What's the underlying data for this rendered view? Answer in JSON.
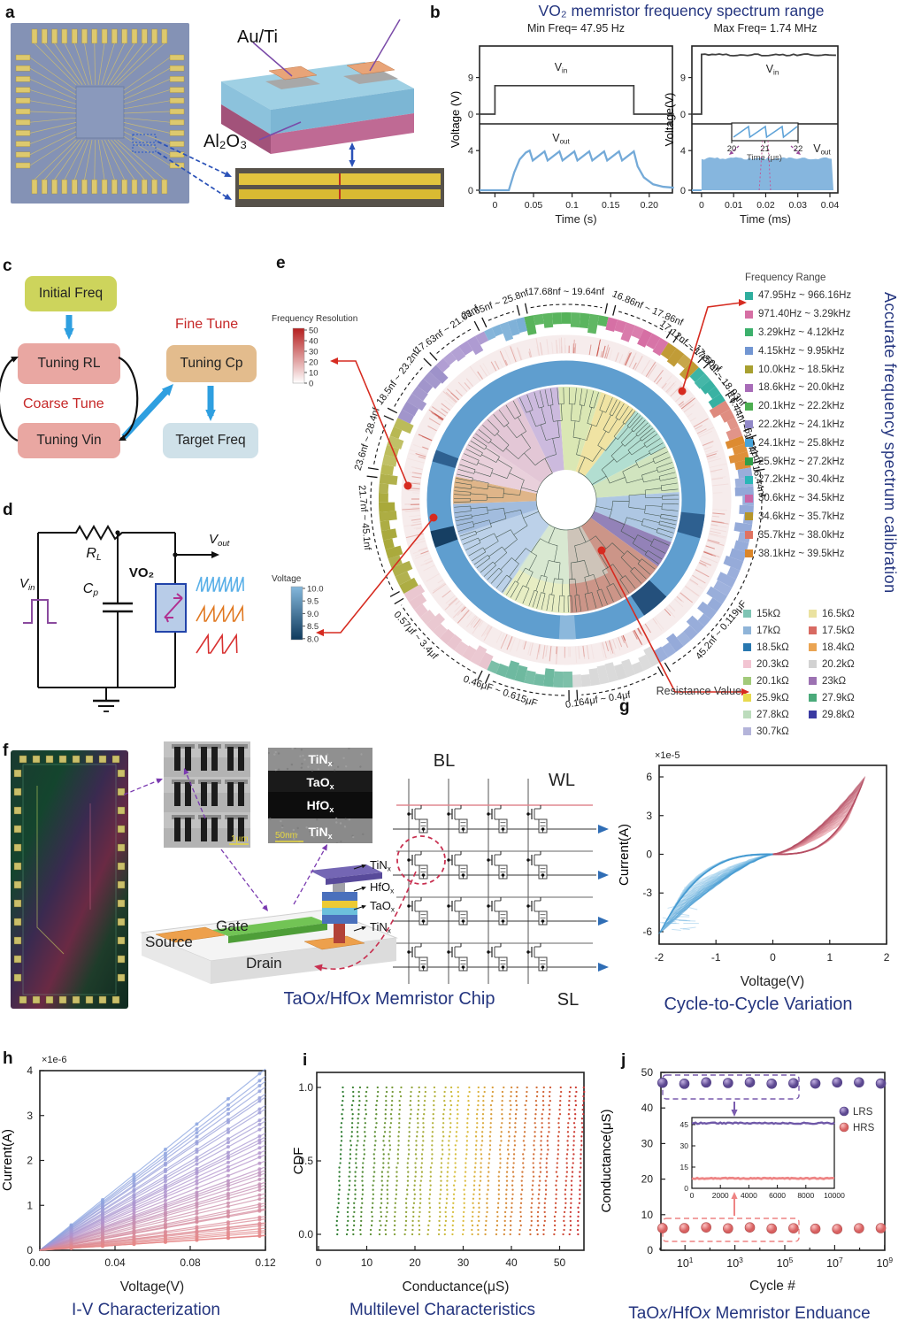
{
  "letters": {
    "a": "a",
    "b": "b",
    "c": "c",
    "d": "d",
    "e": "e",
    "f": "f",
    "g": "g",
    "h": "h",
    "i": "i",
    "j": "j"
  },
  "a": {
    "au_ti": "Au/Ti",
    "al2o3": "Al₂O₃"
  },
  "b": {
    "title": "VO₂ memristor frequency spectrum range",
    "left": {
      "subtitle": "Min Freq= 47.95 Hz",
      "ylabel": "Voltage (V)",
      "xlabel": "Time (s)",
      "xticks": [
        "0",
        "0.05",
        "0.1",
        "0.15",
        "0.20"
      ],
      "ytop": [
        "9",
        "0"
      ],
      "ybot": [
        "4",
        "0"
      ],
      "vin": {
        "m": "V",
        "s": "in"
      },
      "vout": {
        "m": "V",
        "s": "out"
      }
    },
    "right": {
      "subtitle": "Max Freq= 1.74 MHz",
      "ylabel": "Voltage(V)",
      "xlabel": "Time (ms)",
      "xticks": [
        "0",
        "0.01",
        "0.02",
        "0.03",
        "0.04"
      ],
      "ytop": [
        "9",
        "0"
      ],
      "ybot": [
        "4",
        "0"
      ],
      "vin": {
        "m": "V",
        "s": "in"
      },
      "vout": {
        "m": "V",
        "s": "out"
      },
      "inset_xticks": [
        "20",
        "21",
        "22"
      ],
      "inset_xlabel": "Time (μs)"
    }
  },
  "c": {
    "initial": "Initial Freq",
    "rl": "Tuning RL",
    "vin": "Tuning Vin",
    "cp": "Tuning Cp",
    "target": "Target Freq",
    "coarse": "Coarse Tune",
    "fine": "Fine Tune"
  },
  "d": {
    "rl": {
      "m": "R",
      "s": "L"
    },
    "cp": {
      "m": "C",
      "s": "p"
    },
    "vo2": "VO₂",
    "vin": {
      "m": "V",
      "s": "in"
    },
    "vout": {
      "m": "V",
      "s": "out"
    }
  },
  "e": {
    "side_title": "Accurate frequency spectrum calibration",
    "freq_legend_title": "Frequency Range",
    "res_label": "Resistance Value",
    "freq_res": {
      "title": "Frequency Resolution",
      "ticks": [
        "50",
        "40",
        "30",
        "20",
        "10",
        "0"
      ]
    },
    "voltage": {
      "title": "Voltage",
      "ticks": [
        "10.0",
        "9.5",
        "9.0",
        "8.5",
        "8.0"
      ]
    },
    "freq_legend": [
      {
        "color": "#2fae9e",
        "label": "47.95Hz ~ 966.16Hz"
      },
      {
        "color": "#d66fa4",
        "label": "971.40Hz ~ 3.29kHz"
      },
      {
        "color": "#3cb06c",
        "label": "3.29kHz ~ 4.12kHz"
      },
      {
        "color": "#7296d2",
        "label": "4.15kHz ~ 9.95kHz"
      },
      {
        "color": "#a8a030",
        "label": "10.0kHz ~ 18.5kHz"
      },
      {
        "color": "#a86cb8",
        "label": "18.6kHz ~ 20.0kHz"
      },
      {
        "color": "#4cae50",
        "label": "20.1kHz ~ 22.2kHz"
      },
      {
        "color": "#9188c8",
        "label": "22.2kHz ~ 24.1kHz"
      },
      {
        "color": "#46a4da",
        "label": "24.1kHz ~ 25.8kHz"
      },
      {
        "color": "#2f9e48",
        "label": "25.9kHz ~ 27.2kHz"
      },
      {
        "color": "#2ab6b6",
        "label": "27.2kHz ~ 30.4kHz"
      },
      {
        "color": "#c868a8",
        "label": "30.6kHz ~ 34.5kHz"
      },
      {
        "color": "#b5952a",
        "label": "34.6kHz ~ 35.7kHz"
      },
      {
        "color": "#e07260",
        "label": "35.7kHz ~ 38.0kHz"
      },
      {
        "color": "#dc8628",
        "label": "38.1kHz ~ 39.5kHz"
      }
    ],
    "res_col1": [
      {
        "color": "#7fc4b4",
        "label": "15kΩ"
      },
      {
        "color": "#8fb4d8",
        "label": "17kΩ"
      },
      {
        "color": "#2878b0",
        "label": "18.5kΩ"
      },
      {
        "color": "#f2c4d2",
        "label": "20.3kΩ"
      },
      {
        "color": "#a2ca7a",
        "label": "20.1kΩ"
      },
      {
        "color": "#e8da4e",
        "label": "25.9kΩ"
      },
      {
        "color": "#bcdcbc",
        "label": "27.8kΩ"
      },
      {
        "color": "#b4b4da",
        "label": "30.7kΩ"
      }
    ],
    "res_col2": [
      {
        "color": "#eae2a0",
        "label": "16.5kΩ"
      },
      {
        "color": "#d86a62",
        "label": "17.5kΩ"
      },
      {
        "color": "#eaa452",
        "label": "18.4kΩ"
      },
      {
        "color": "#d2d2d2",
        "label": "20.2kΩ"
      },
      {
        "color": "#9c72b2",
        "label": "23kΩ"
      },
      {
        "color": "#4aaa7a",
        "label": "27.9kΩ"
      },
      {
        "color": "#3a3aa2",
        "label": "29.8kΩ"
      }
    ],
    "ring_segments": [
      {
        "label": "17.68nf ~ 19.64nf",
        "color": "#4cae50",
        "a0": -13,
        "a1": 13,
        "la": 0,
        "lr": 232
      },
      {
        "label": "16.86nf ~ 17.86nf",
        "color": "#d66fa4",
        "a0": 13,
        "a1": 33,
        "la": 23,
        "lr": 232
      },
      {
        "label": "17.12nf ~ 17.50nf",
        "color": "#c09a32",
        "a0": 33,
        "a1": 45,
        "la": 39,
        "lr": 220
      },
      {
        "label": "17.87nf ~ 18.93nf",
        "color": "#2fae9e",
        "a0": 45,
        "a1": 58,
        "la": 51,
        "lr": 220
      },
      {
        "label": "16.44nf ~ 17.11nf",
        "color": "#de8a7e",
        "a0": 58,
        "a1": 70,
        "la": 68,
        "lr": 214
      },
      {
        "label": "16.13nf ~ 16.44nf",
        "color": "#dc8628",
        "a0": 70,
        "a1": 80,
        "la": 78,
        "lr": 214
      },
      {
        "label": "45.2nf ~ 0.119μF",
        "color": "#92a8d8",
        "a0": 80,
        "a1": 150,
        "la": 130,
        "lr": 232
      },
      {
        "label": "0.164μf ~ 0.4μf",
        "color": "#d8d8d8",
        "a0": 150,
        "a1": 178,
        "la": 171,
        "lr": 232
      },
      {
        "label": "0.46μF ~ 0.615μF",
        "color": "#6cb89e",
        "a0": 178,
        "a1": 205,
        "la": 199,
        "lr": 232
      },
      {
        "label": "0.57μf ~ 3.4μf",
        "color": "#e8c2cc",
        "a0": 205,
        "a1": 240,
        "la": 228,
        "lr": 232
      },
      {
        "label": "21.7nf ~ 45.1nf",
        "color": "#a8a838",
        "a0": 240,
        "a1": 278,
        "la": 265,
        "lr": 232
      },
      {
        "label": "23.6nf ~ 28.4nf",
        "color": "#b8b852",
        "a0": 278,
        "a1": 296,
        "la": 287,
        "lr": 232
      },
      {
        "label": "18.5nf ~ 23.2nf",
        "color": "#9b8ec8",
        "a0": 296,
        "a1": 316,
        "la": 306,
        "lr": 232
      },
      {
        "label": "17.63nf ~ 21.08nf",
        "color": "#ab97d0",
        "a0": 316,
        "a1": 334,
        "la": 325,
        "lr": 232
      },
      {
        "label": "21.65nf ~ 25.8nf",
        "color": "#79aed6",
        "a0": 334,
        "a1": 347,
        "la": 340,
        "lr": 232
      }
    ],
    "inner_wedges": [
      {
        "a0": -26,
        "a1": -4,
        "c": "#c9b6dc"
      },
      {
        "a0": -4,
        "a1": 18,
        "c": "#d8e6b0"
      },
      {
        "a0": 18,
        "a1": 38,
        "c": "#efe29e"
      },
      {
        "a0": 38,
        "a1": 62,
        "c": "#aedccf"
      },
      {
        "a0": 62,
        "a1": 86,
        "c": "#cfe3bc"
      },
      {
        "a0": 86,
        "a1": 112,
        "c": "#aac4e2"
      },
      {
        "a0": 112,
        "a1": 126,
        "c": "#8d7bb4"
      },
      {
        "a0": 126,
        "a1": 178,
        "c": "#c98f82"
      },
      {
        "a0": 178,
        "a1": 214,
        "c": "#e6ecc0"
      },
      {
        "a0": 214,
        "a1": 252,
        "c": "#b8cfe8"
      },
      {
        "a0": 252,
        "a1": 268,
        "c": "#9db8dc"
      },
      {
        "a0": 268,
        "a1": 282,
        "c": "#ddb183"
      },
      {
        "a0": 282,
        "a1": 304,
        "c": "#e8cdd9"
      },
      {
        "a0": 304,
        "a1": 334,
        "c": "#e2c4d4"
      }
    ]
  },
  "f": {
    "sem_scale": "1μm",
    "tem_scale": "50nm",
    "tem_layers": [
      {
        "m": "TiN",
        "s": "x"
      },
      {
        "m": "TaO",
        "s": "x"
      },
      {
        "m": "HfO",
        "s": "x"
      },
      {
        "m": "TiN",
        "s": "x"
      }
    ],
    "stack_labels": [
      {
        "m": "TiN",
        "s": "x"
      },
      {
        "m": "HfO",
        "s": "x"
      },
      {
        "m": "TaO",
        "s": "x"
      },
      {
        "m": "TiN",
        "s": "x"
      }
    ],
    "source": "Source",
    "gate": "Gate",
    "drain": "Drain",
    "bl": "BL",
    "wl": "WL",
    "sl": "SL",
    "caption": [
      {
        "t": "TaO"
      },
      {
        "t": "x",
        "i": 1
      },
      {
        "t": "/HfO"
      },
      {
        "t": "x",
        "i": 1
      },
      {
        "t": " Memristor Chip"
      }
    ]
  },
  "g": {
    "exp": "×1e-5",
    "ylabel": "Current(A)",
    "xlabel": "Voltage(V)",
    "xticks": [
      "-2",
      "-1",
      "0",
      "1",
      "2"
    ],
    "yticks": [
      "-6",
      "-3",
      "0",
      "3",
      "6"
    ],
    "caption": "Cycle-to-Cycle Variation"
  },
  "h": {
    "exp": "×1e-6",
    "ylabel": "Current(A)",
    "xlabel": "Voltage(V)",
    "xticks": [
      "0.00",
      "0.04",
      "0.08",
      "0.12"
    ],
    "yticks": [
      "0",
      "1",
      "2",
      "3",
      "4"
    ],
    "caption": "I-V Characterization"
  },
  "i": {
    "ylabel": "CDF",
    "xlabel": "Conductance(μS)",
    "xticks": [
      "0",
      "10",
      "20",
      "30",
      "40",
      "50"
    ],
    "yticks": [
      "1.0",
      "0.5",
      "0.0"
    ],
    "caption": "Multilevel Characteristics"
  },
  "j": {
    "ylabel": "Conductance(μS)",
    "xlabel": "Cycle #",
    "yticks": [
      "0",
      "10",
      "20",
      "30",
      "40",
      "50"
    ],
    "xtick_exps": [
      "1",
      "3",
      "5",
      "7",
      "9"
    ],
    "legend": [
      "LRS",
      "HRS"
    ],
    "inset": {
      "yticks": [
        "45",
        "30",
        "15",
        "0"
      ],
      "xticks": [
        "0",
        "2000",
        "4000",
        "6000",
        "8000",
        "10000"
      ]
    },
    "caption": [
      {
        "t": "TaO"
      },
      {
        "t": "x",
        "i": 1
      },
      {
        "t": "/HfO"
      },
      {
        "t": "x",
        "i": 1
      },
      {
        "t": "  Memristor Enduance"
      }
    ]
  },
  "chart_data": {
    "b_left": {
      "type": "line",
      "title": "Min Freq= 47.95 Hz",
      "xlabel": "Time (s)",
      "ylabel": "Voltage (V)",
      "x_range_s": [
        -0.02,
        0.232
      ],
      "vin_pulse": {
        "t_on_s": 0,
        "t_off_s": 0.18,
        "low_V": 0,
        "high_V": 7
      },
      "vout": {
        "baseline_V": 0,
        "osc_min_V": 3.0,
        "osc_max_V": 4.0,
        "n_peaks": 7,
        "freq_Hz": 47.95
      }
    },
    "b_right": {
      "type": "line",
      "title": "Max Freq= 1.74 MHz",
      "xlabel": "Time (ms)",
      "ylabel": "Voltage(V)",
      "x_range_ms": [
        -0.003,
        0.0425
      ],
      "vin_pulse": {
        "t_on_ms": 0,
        "high_V": 14
      },
      "vout": {
        "band_min_V": 0.2,
        "band_max_V": 3.2,
        "freq_MHz": 1.74
      },
      "inset": {
        "x_ticks_us": [
          20,
          21,
          22
        ],
        "waveform": "sawtooth"
      }
    },
    "g": {
      "type": "line",
      "xlabel": "Voltage(V)",
      "ylabel": "Current(A)",
      "y_scale": "1e-5",
      "xlim": [
        -2,
        2
      ],
      "ylim": [
        -6,
        6
      ],
      "n_cycles": 30,
      "pos_peak": 6,
      "neg_peak": -6.2,
      "pos_set_V": [
        1.3,
        1.7
      ],
      "neg_extent_V": -2
    },
    "h": {
      "type": "line",
      "xlabel": "Voltage(V)",
      "ylabel": "Current(A)",
      "y_scale": "1e-6",
      "xlim": [
        0,
        0.12
      ],
      "ylim": [
        0,
        4
      ],
      "n_lines": 42,
      "end_current_range": [
        0.32,
        4.0
      ]
    },
    "i": {
      "type": "line",
      "xlabel": "Conductance(μS)",
      "ylabel": "CDF",
      "xlim": [
        0,
        55
      ],
      "ylim": [
        0,
        1
      ],
      "n_levels": 30,
      "level_range_uS": [
        3.8,
        54
      ],
      "lean_uS": 1.35
    },
    "j": {
      "type": "scatter",
      "xlabel": "Cycle #",
      "ylabel": "Conductance(μS)",
      "x_scale": "log",
      "xlim_decades": [
        0,
        9
      ],
      "ylim": [
        0,
        50
      ],
      "n_points": 11,
      "series": [
        {
          "name": "LRS",
          "value_uS": 47
        },
        {
          "name": "HRS",
          "value_uS": 6.2
        }
      ],
      "inset": {
        "xlim": [
          0,
          10000
        ],
        "LRS_uS": 46,
        "HRS_uS": 7
      }
    }
  }
}
